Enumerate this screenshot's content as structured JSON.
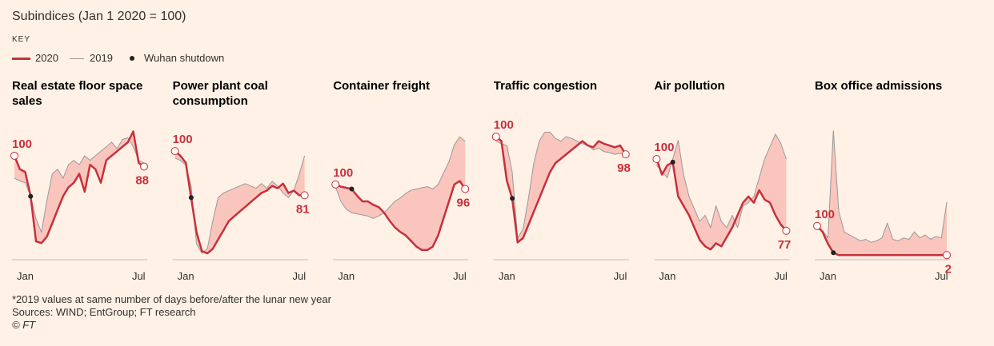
{
  "title": "Subindices (Jan 1 2020 = 100)",
  "key": "KEY",
  "marker": {
    "name": "Wuhan shutdown",
    "index": 3
  },
  "notes": [
    "*2019 values at same number of days before/after the lunar new year",
    "Sources: WIND; EntGroup; FT research",
    "© FT"
  ],
  "chart_data": [
    {
      "type": "line",
      "title": "Real estate floor space sales",
      "categories": [
        null,
        null,
        "Jan",
        null,
        null,
        null,
        null,
        null,
        null,
        null,
        null,
        null,
        null,
        null,
        null,
        null,
        null,
        null,
        null,
        null,
        null,
        null,
        null,
        "Jul",
        null
      ],
      "ylim": [
        -11,
        131
      ],
      "series": [
        {
          "name": "2020",
          "color": "#c8303c",
          "values": [
            100,
            85,
            82,
            55,
            5,
            3,
            10,
            25,
            40,
            55,
            65,
            70,
            80,
            60,
            90,
            85,
            70,
            95,
            100,
            105,
            110,
            115,
            127,
            92,
            88
          ]
        },
        {
          "name": "2019",
          "color": "#999999",
          "values": [
            75,
            72,
            70,
            55,
            30,
            15,
            50,
            80,
            85,
            75,
            90,
            95,
            90,
            100,
            95,
            100,
            105,
            110,
            115,
            108,
            118,
            120,
            110,
            95,
            92
          ]
        }
      ]
    },
    {
      "type": "line",
      "title": "Power plant coal consumption",
      "categories": [
        null,
        null,
        "Jan",
        null,
        null,
        null,
        null,
        null,
        null,
        null,
        null,
        null,
        null,
        null,
        null,
        null,
        null,
        null,
        null,
        null,
        null,
        null,
        null,
        "Jul",
        null
      ],
      "ylim": [
        55,
        110
      ],
      "series": [
        {
          "name": "2020",
          "color": "#c8303c",
          "values": [
            100,
            98,
            95,
            80,
            65,
            57,
            56,
            58,
            62,
            66,
            70,
            72,
            74,
            76,
            78,
            80,
            82,
            83,
            85,
            84,
            86,
            82,
            83,
            81,
            81
          ]
        },
        {
          "name": "2019",
          "color": "#999999",
          "values": [
            97,
            96,
            94,
            85,
            60,
            56,
            58,
            70,
            80,
            82,
            83,
            84,
            85,
            86,
            85,
            84,
            86,
            84,
            87,
            85,
            82,
            80,
            83,
            90,
            98
          ]
        }
      ]
    },
    {
      "type": "line",
      "title": "Container freight",
      "categories": [
        null,
        null,
        "Jan",
        null,
        null,
        null,
        null,
        null,
        null,
        null,
        null,
        null,
        null,
        null,
        null,
        null,
        null,
        null,
        null,
        null,
        null,
        null,
        null,
        "Jul",
        null
      ],
      "ylim": [
        37,
        150
      ],
      "series": [
        {
          "name": "2020",
          "color": "#c8303c",
          "values": [
            100,
            98,
            97,
            96,
            90,
            85,
            85,
            82,
            80,
            75,
            68,
            62,
            58,
            55,
            50,
            45,
            42,
            42,
            45,
            55,
            70,
            85,
            100,
            103,
            96
          ]
        },
        {
          "name": "2019",
          "color": "#999999",
          "values": [
            98,
            85,
            78,
            75,
            74,
            73,
            72,
            70,
            72,
            75,
            80,
            85,
            88,
            92,
            95,
            96,
            97,
            98,
            96,
            100,
            110,
            120,
            135,
            142,
            138
          ]
        }
      ]
    },
    {
      "type": "line",
      "title": "Traffic congestion",
      "categories": [
        null,
        null,
        "Jan",
        null,
        null,
        null,
        null,
        null,
        null,
        null,
        null,
        null,
        null,
        null,
        null,
        null,
        null,
        null,
        null,
        null,
        null,
        null,
        null,
        "Jul",
        null
      ],
      "ylim": [
        86.5,
        101
      ],
      "series": [
        {
          "name": "2020",
          "color": "#c8303c",
          "values": [
            100,
            99.5,
            95,
            93,
            88,
            88.5,
            90,
            91.5,
            93,
            94.5,
            96,
            97,
            97.5,
            98,
            98.5,
            99,
            99.5,
            99,
            98.8,
            99.5,
            99.2,
            99,
            98.8,
            99,
            98
          ]
        },
        {
          "name": "2019",
          "color": "#999999",
          "values": [
            99.5,
            99.2,
            99,
            96,
            88.5,
            89.5,
            93,
            97,
            99.5,
            100.5,
            100.5,
            99.8,
            99.5,
            100,
            99.8,
            99.5,
            99.2,
            99,
            98.5,
            98.7,
            98.3,
            98.2,
            98,
            98.1,
            98
          ]
        }
      ]
    },
    {
      "type": "line",
      "title": "Air pollution",
      "categories": [
        null,
        null,
        "Jan",
        null,
        null,
        null,
        null,
        null,
        null,
        null,
        null,
        null,
        null,
        null,
        null,
        null,
        null,
        null,
        null,
        null,
        null,
        null,
        null,
        "Jul",
        null
      ],
      "ylim": [
        69,
        110
      ],
      "series": [
        {
          "name": "2020",
          "color": "#c8303c",
          "values": [
            100,
            95,
            98,
            99,
            88,
            85,
            82,
            78,
            74,
            72,
            71,
            73,
            72,
            75,
            78,
            82,
            86,
            88,
            86,
            90,
            87,
            86,
            82,
            79,
            77
          ]
        },
        {
          "name": "2019",
          "color": "#999999",
          "values": [
            98,
            96,
            94,
            100,
            106,
            95,
            88,
            84,
            80,
            82,
            78,
            85,
            80,
            78,
            82,
            78,
            85,
            86,
            88,
            94,
            100,
            104,
            108,
            105,
            100
          ]
        }
      ]
    },
    {
      "type": "line",
      "title": "Box office admissions",
      "categories": [
        null,
        null,
        "Jan",
        null,
        null,
        null,
        null,
        null,
        null,
        null,
        null,
        null,
        null,
        null,
        null,
        null,
        null,
        null,
        null,
        null,
        null,
        null,
        null,
        "Jul",
        null
      ],
      "ylim": [
        0,
        430
      ],
      "series": [
        {
          "name": "2020",
          "color": "#c8303c",
          "values": [
            100,
            80,
            40,
            10,
            2,
            2,
            2,
            2,
            2,
            2,
            2,
            2,
            2,
            2,
            2,
            2,
            2,
            2,
            2,
            2,
            2,
            2,
            2,
            2,
            2
          ]
        },
        {
          "name": "2019",
          "color": "#999999",
          "values": [
            90,
            85,
            60,
            420,
            150,
            80,
            70,
            60,
            50,
            55,
            45,
            50,
            60,
            110,
            55,
            50,
            60,
            55,
            80,
            60,
            70,
            55,
            65,
            60,
            180
          ]
        }
      ]
    }
  ]
}
